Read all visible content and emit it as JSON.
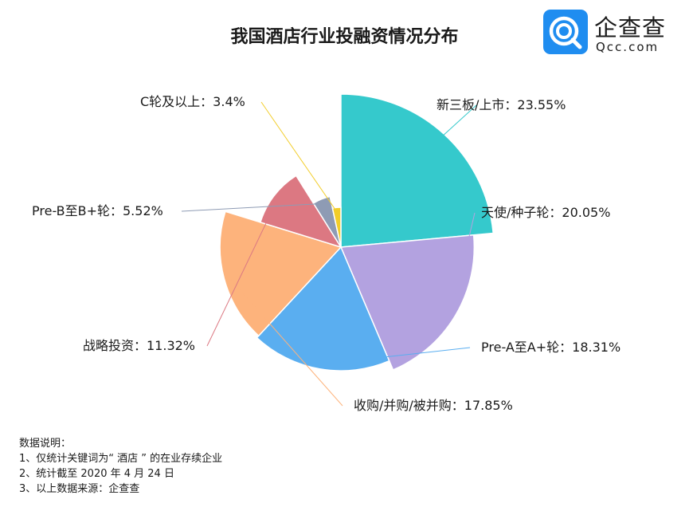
{
  "title": "我国酒店行业投融资情况分布",
  "logo": {
    "name": "企查查",
    "sub": "Qcc.com"
  },
  "chart_data": {
    "type": "pie",
    "variant": "rose",
    "title": "我国酒店行业投融资情况分布",
    "series": [
      {
        "name": "新三板/上市",
        "label": "新三板/上市：23.55%",
        "value": 23.55,
        "color": "#35c9cc"
      },
      {
        "name": "天使/种子轮",
        "label": "天使/种子轮：20.05%",
        "value": 20.05,
        "color": "#b3a2e0"
      },
      {
        "name": "Pre-A至A+轮",
        "label": "Pre-A至A+轮：18.31%",
        "value": 18.31,
        "color": "#5aaef0"
      },
      {
        "name": "收购/并购/被并购",
        "label": "收购/并购/被并购：17.85%",
        "value": 17.85,
        "color": "#fdb37c"
      },
      {
        "name": "战略投资",
        "label": "战略投资：11.32%",
        "value": 11.32,
        "color": "#dc7882"
      },
      {
        "name": "Pre-B至B+轮",
        "label": "Pre-B至B+轮：5.52%",
        "value": 5.52,
        "color": "#8e9bb4"
      },
      {
        "name": "C轮及以上",
        "label": "C轮及以上：3.4%",
        "value": 3.4,
        "color": "#f2cd2a"
      }
    ]
  },
  "notes": [
    "数据说明：",
    "1、仅统计关键词为“ 酒店 ” 的在业存续企业",
    "2、统计截至 2020 年 4 月 24 日",
    "3、以上数据来源：企查查"
  ]
}
